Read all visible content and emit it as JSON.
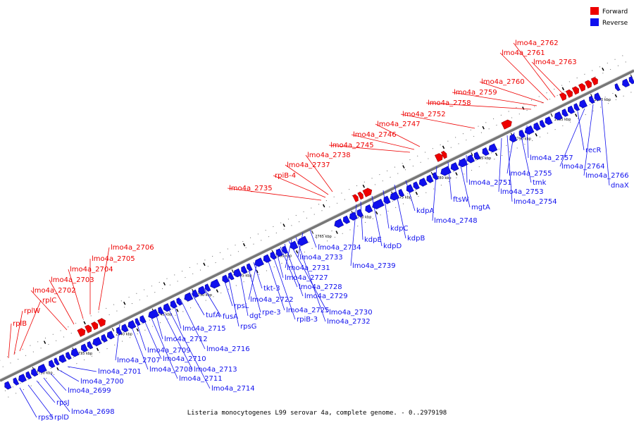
{
  "caption": "Listeria monocytogenes L99 serovar 4a, complete genome. - 0..2979198",
  "legend": {
    "forward_label": "Forward",
    "reverse_label": "Reverse",
    "forward_color": "#ee0000",
    "reverse_color": "#1010ee"
  },
  "colors": {
    "backbone": "#777777",
    "backbone_light": "#dddddd"
  },
  "ticks": [
    "2730 kbp",
    "2735 kbp",
    "2740 kbp",
    "2745 kbp",
    "2750 kbp",
    "2755 kbp",
    "2760 kbp",
    "2765 kbp",
    "2770 kbp",
    "2775 kbp",
    "2780 kbp",
    "2785 kbp",
    "2790 kbp",
    "2795 kbp",
    "2800 kbp",
    "2805 kbp"
  ],
  "forward_genes": [
    "rplB",
    "rplW",
    "rplC",
    "lmo4a_2702",
    "lmo4a_2703",
    "lmo4a_2704",
    "lmo4a_2705",
    "lmo4a_2706",
    "lmo4a_2735",
    "rpiB-4",
    "lmo4a_2737",
    "lmo4a_2738",
    "lmo4a_2745",
    "lmo4a_2746",
    "lmo4a_2747",
    "lmo4a_2752",
    "lmo4a_2758",
    "lmo4a_2759",
    "lmo4a_2760",
    "lmo4a_2761",
    "lmo4a_2762",
    "lmo4a_2763"
  ],
  "reverse_genes": [
    "rpsS",
    "rplD",
    "rpsJ",
    "lmo4a_2698",
    "lmo4a_2699",
    "lmo4a_2700",
    "lmo4a_2701",
    "lmo4a_2707",
    "lmo4a_2708",
    "lmo4a_2709",
    "lmo4a_2710",
    "lmo4a_2711",
    "lmo4a_2712",
    "lmo4a_2713",
    "lmo4a_2714",
    "lmo4a_2715",
    "lmo4a_2716",
    "tufA",
    "fusA",
    "rpsL",
    "rpsG",
    "dgt",
    "rpe-3",
    "tkt-3",
    "lmo4a_2722",
    "lmo4a_2725",
    "rpiB-3",
    "lmo4a_2727",
    "lmo4a_2728",
    "lmo4a_2729",
    "lmo4a_2730",
    "lmo4a_2731",
    "lmo4a_2732",
    "lmo4a_2733",
    "lmo4a_2734",
    "lmo4a_2739",
    "kdpE",
    "kdpD",
    "kdpC",
    "kdpB",
    "kdpA",
    "lmo4a_2748",
    "ftsW",
    "mgtA",
    "lmo4a_2751",
    "lmo4a_2753",
    "lmo4a_2754",
    "lmo4a_2755",
    "tmk",
    "lmo4a_2757",
    "recR",
    "lmo4a_2764",
    "lmo4a_2766",
    "dnaX"
  ]
}
